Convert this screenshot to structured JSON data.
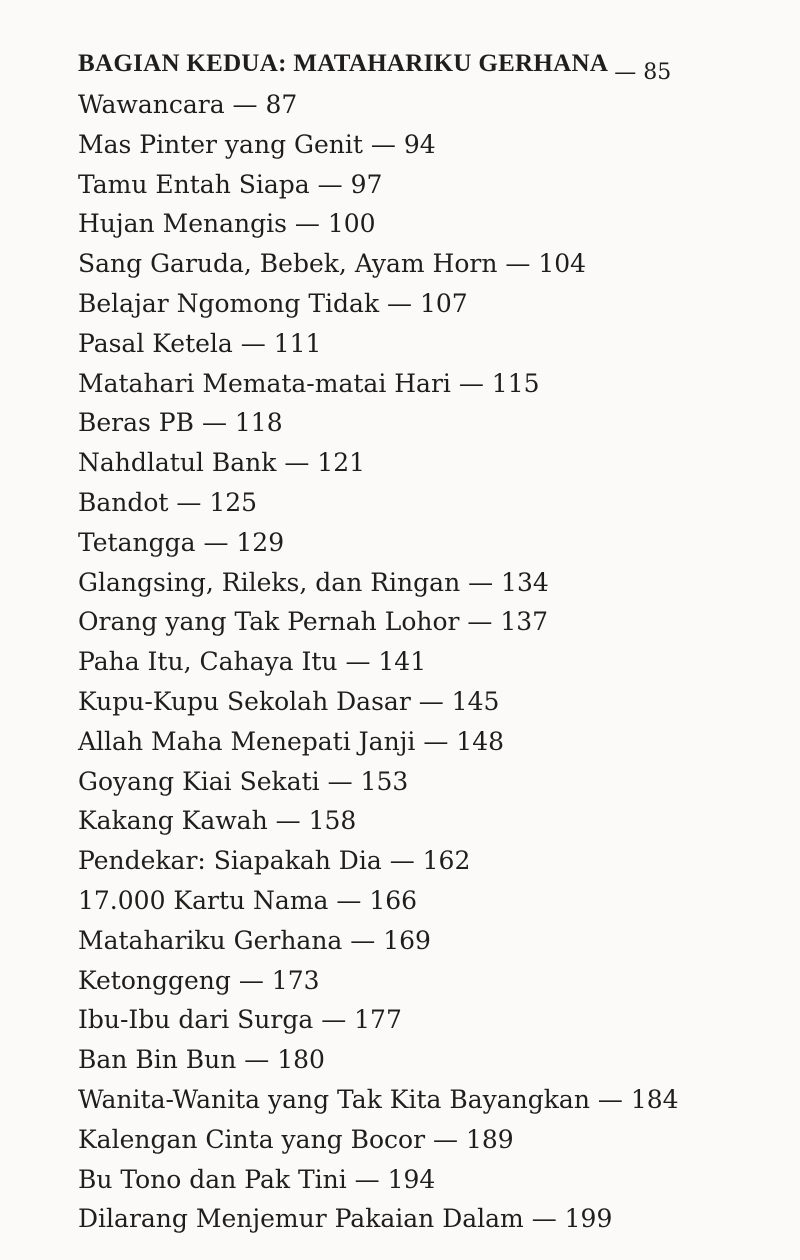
{
  "heading": {
    "title": "BAGIAN KEDUA: MATAHARIKU GERHANA",
    "page": "— 85"
  },
  "entries": [
    "Wawancara — 87",
    "Mas Pinter yang Genit — 94",
    "Tamu Entah Siapa — 97",
    "Hujan Menangis — 100",
    "Sang Garuda, Bebek, Ayam Horn — 104",
    "Belajar Ngomong Tidak — 107",
    "Pasal Ketela — 111",
    "Matahari Memata-matai Hari — 115",
    "Beras PB — 118",
    "Nahdlatul Bank — 121",
    "Bandot — 125",
    "Tetangga — 129",
    "Glangsing, Rileks, dan Ringan — 134",
    "Orang yang Tak Pernah Lohor — 137",
    "Paha Itu, Cahaya Itu — 141",
    "Kupu-Kupu Sekolah Dasar — 145",
    "Allah Maha Menepati Janji — 148",
    "Goyang Kiai Sekati — 153",
    "Kakang Kawah — 158",
    "Pendekar: Siapakah Dia — 162",
    "17.000 Kartu Nama — 166",
    "Matahariku Gerhana — 169",
    "Ketonggeng — 173",
    "Ibu-Ibu dari Surga — 177",
    "Ban Bin Bun — 180",
    "Wanita-Wanita yang Tak Kita Bayangkan — 184",
    "Kalengan Cinta yang Bocor — 189",
    "Bu Tono dan Pak Tini — 194",
    "Dilarang Menjemur Pakaian Dalam — 199"
  ]
}
